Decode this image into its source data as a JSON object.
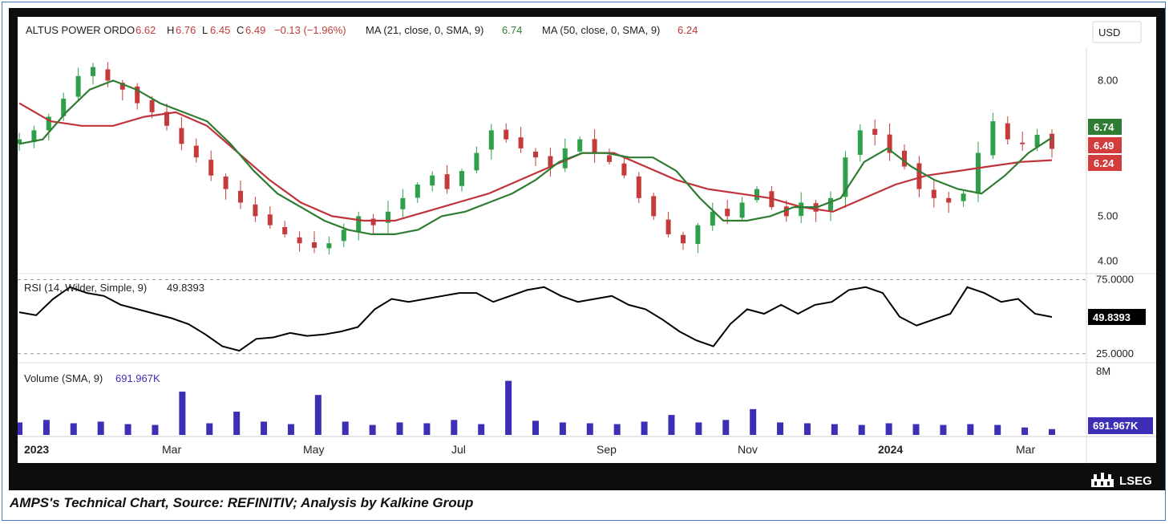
{
  "header": {
    "symbol": "ALTUS POWER ORD",
    "o_label": "O",
    "o_value": "6.62",
    "h_label": "H",
    "h_value": "6.76",
    "l_label": "L",
    "l_value": "6.45",
    "c_label": "C",
    "c_value": "6.49",
    "change": "−0.13 (−1.96%)",
    "ma21_label": "MA (21, close, 0, SMA, 9)",
    "ma21_value": "6.74",
    "ma50_label": "MA (50, close, 0, SMA, 9)",
    "ma50_value": "6.24",
    "currency": "USD"
  },
  "price_axis": {
    "ticks": [
      "8.00",
      "5.00",
      "4.00"
    ],
    "tick_values": [
      8,
      5,
      4
    ]
  },
  "price_badges": {
    "ma21": "6.74",
    "close": "6.49",
    "ma50": "6.24"
  },
  "rsi": {
    "label": "RSI (14, Wilder, Simple, 9)",
    "value": "49.8393",
    "upper": "75.0000",
    "lower": "25.0000",
    "upper_value": 75,
    "lower_value": 25
  },
  "volume": {
    "label": "Volume (SMA, 9)",
    "value": "691.967K",
    "axis_top": "8M"
  },
  "x_axis": {
    "labels": [
      "2023",
      "Mar",
      "May",
      "Jul",
      "Sep",
      "Nov",
      "2024",
      "Mar"
    ]
  },
  "caption": "AMPS's Technical Chart, Source: REFINITIV; Analysis by Kalkine Group",
  "brand": "LSEG",
  "colors": {
    "up": "#2e9f4a",
    "down": "#c43b3b",
    "ma21": "#2f7d32",
    "ma50": "#c0333a",
    "rsi": "#000000",
    "volume": "#3c2fb5",
    "badge_ma21": "#2f7d32",
    "badge_close": "#d33c3c",
    "badge_ma50": "#d33c3c",
    "badge_volume": "#3c2fb5"
  },
  "chart_data": {
    "type": "candlestick",
    "x_range": [
      "2023-01",
      "2024-03"
    ],
    "price_range": [
      3.8,
      8.7
    ],
    "close": [
      6.7,
      6.9,
      7.2,
      7.6,
      8.1,
      8.3,
      8.0,
      7.8,
      7.5,
      7.3,
      7.0,
      6.6,
      6.3,
      5.9,
      5.6,
      5.3,
      5.0,
      4.8,
      4.6,
      4.4,
      4.3,
      4.4,
      4.7,
      5.0,
      4.8,
      5.1,
      5.4,
      5.7,
      5.9,
      5.6,
      6.0,
      6.4,
      6.9,
      6.7,
      6.5,
      6.3,
      6.1,
      6.5,
      6.7,
      6.4,
      6.2,
      5.9,
      5.4,
      5.0,
      4.6,
      4.4,
      4.8,
      5.1,
      5.0,
      5.3,
      5.6,
      5.2,
      5.0,
      5.3,
      5.1,
      5.4,
      6.3,
      6.9,
      6.8,
      6.4,
      6.1,
      5.6,
      5.4,
      5.3,
      5.5,
      6.4,
      7.1,
      6.7,
      6.6,
      6.8,
      6.49
    ],
    "ma21": [
      6.6,
      6.7,
      7.3,
      7.8,
      8.0,
      7.8,
      7.5,
      7.3,
      7.1,
      6.6,
      6.0,
      5.5,
      5.2,
      4.9,
      4.7,
      4.6,
      4.6,
      4.7,
      5.0,
      5.1,
      5.3,
      5.5,
      5.8,
      6.2,
      6.4,
      6.4,
      6.3,
      6.3,
      6.0,
      5.4,
      4.9,
      4.9,
      5.0,
      5.2,
      5.2,
      5.4,
      6.2,
      6.5,
      6.1,
      5.8,
      5.6,
      5.5,
      5.9,
      6.4,
      6.74
    ],
    "ma50": [
      7.5,
      7.1,
      7.0,
      7.0,
      7.2,
      7.3,
      7.0,
      6.4,
      5.8,
      5.3,
      5.0,
      4.9,
      4.9,
      5.1,
      5.3,
      5.5,
      5.8,
      6.1,
      6.4,
      6.4,
      6.1,
      5.8,
      5.6,
      5.5,
      5.4,
      5.2,
      5.1,
      5.4,
      5.7,
      5.9,
      6.0,
      6.1,
      6.2,
      6.24
    ],
    "rsi": [
      53,
      51,
      62,
      70,
      66,
      64,
      58,
      55,
      52,
      49,
      45,
      38,
      30,
      27,
      35,
      36,
      39,
      37,
      38,
      40,
      43,
      55,
      62,
      60,
      62,
      64,
      66,
      66,
      60,
      64,
      68,
      70,
      64,
      60,
      62,
      64,
      58,
      55,
      48,
      40,
      34,
      30,
      45,
      55,
      52,
      58,
      52,
      58,
      60,
      68,
      70,
      66,
      50,
      44,
      48,
      52,
      70,
      66,
      60,
      62,
      52,
      49.84
    ],
    "rsi_range": [
      20,
      78
    ],
    "volume_k": [
      1500,
      1800,
      1400,
      1600,
      1300,
      1200,
      5200,
      1400,
      2800,
      1600,
      1300,
      4800,
      1600,
      1200,
      1500,
      1400,
      1800,
      1300,
      6500,
      1700,
      1500,
      1400,
      1300,
      1600,
      2400,
      1500,
      1800,
      3100,
      1500,
      1400,
      1300,
      1200,
      1400,
      1300,
      1200,
      1300,
      1200,
      900,
      700
    ],
    "volume_range_k": [
      0,
      8000
    ],
    "x_labels": [
      "2023",
      "Mar",
      "May",
      "Jul",
      "Sep",
      "Nov",
      "2024",
      "Mar"
    ]
  }
}
